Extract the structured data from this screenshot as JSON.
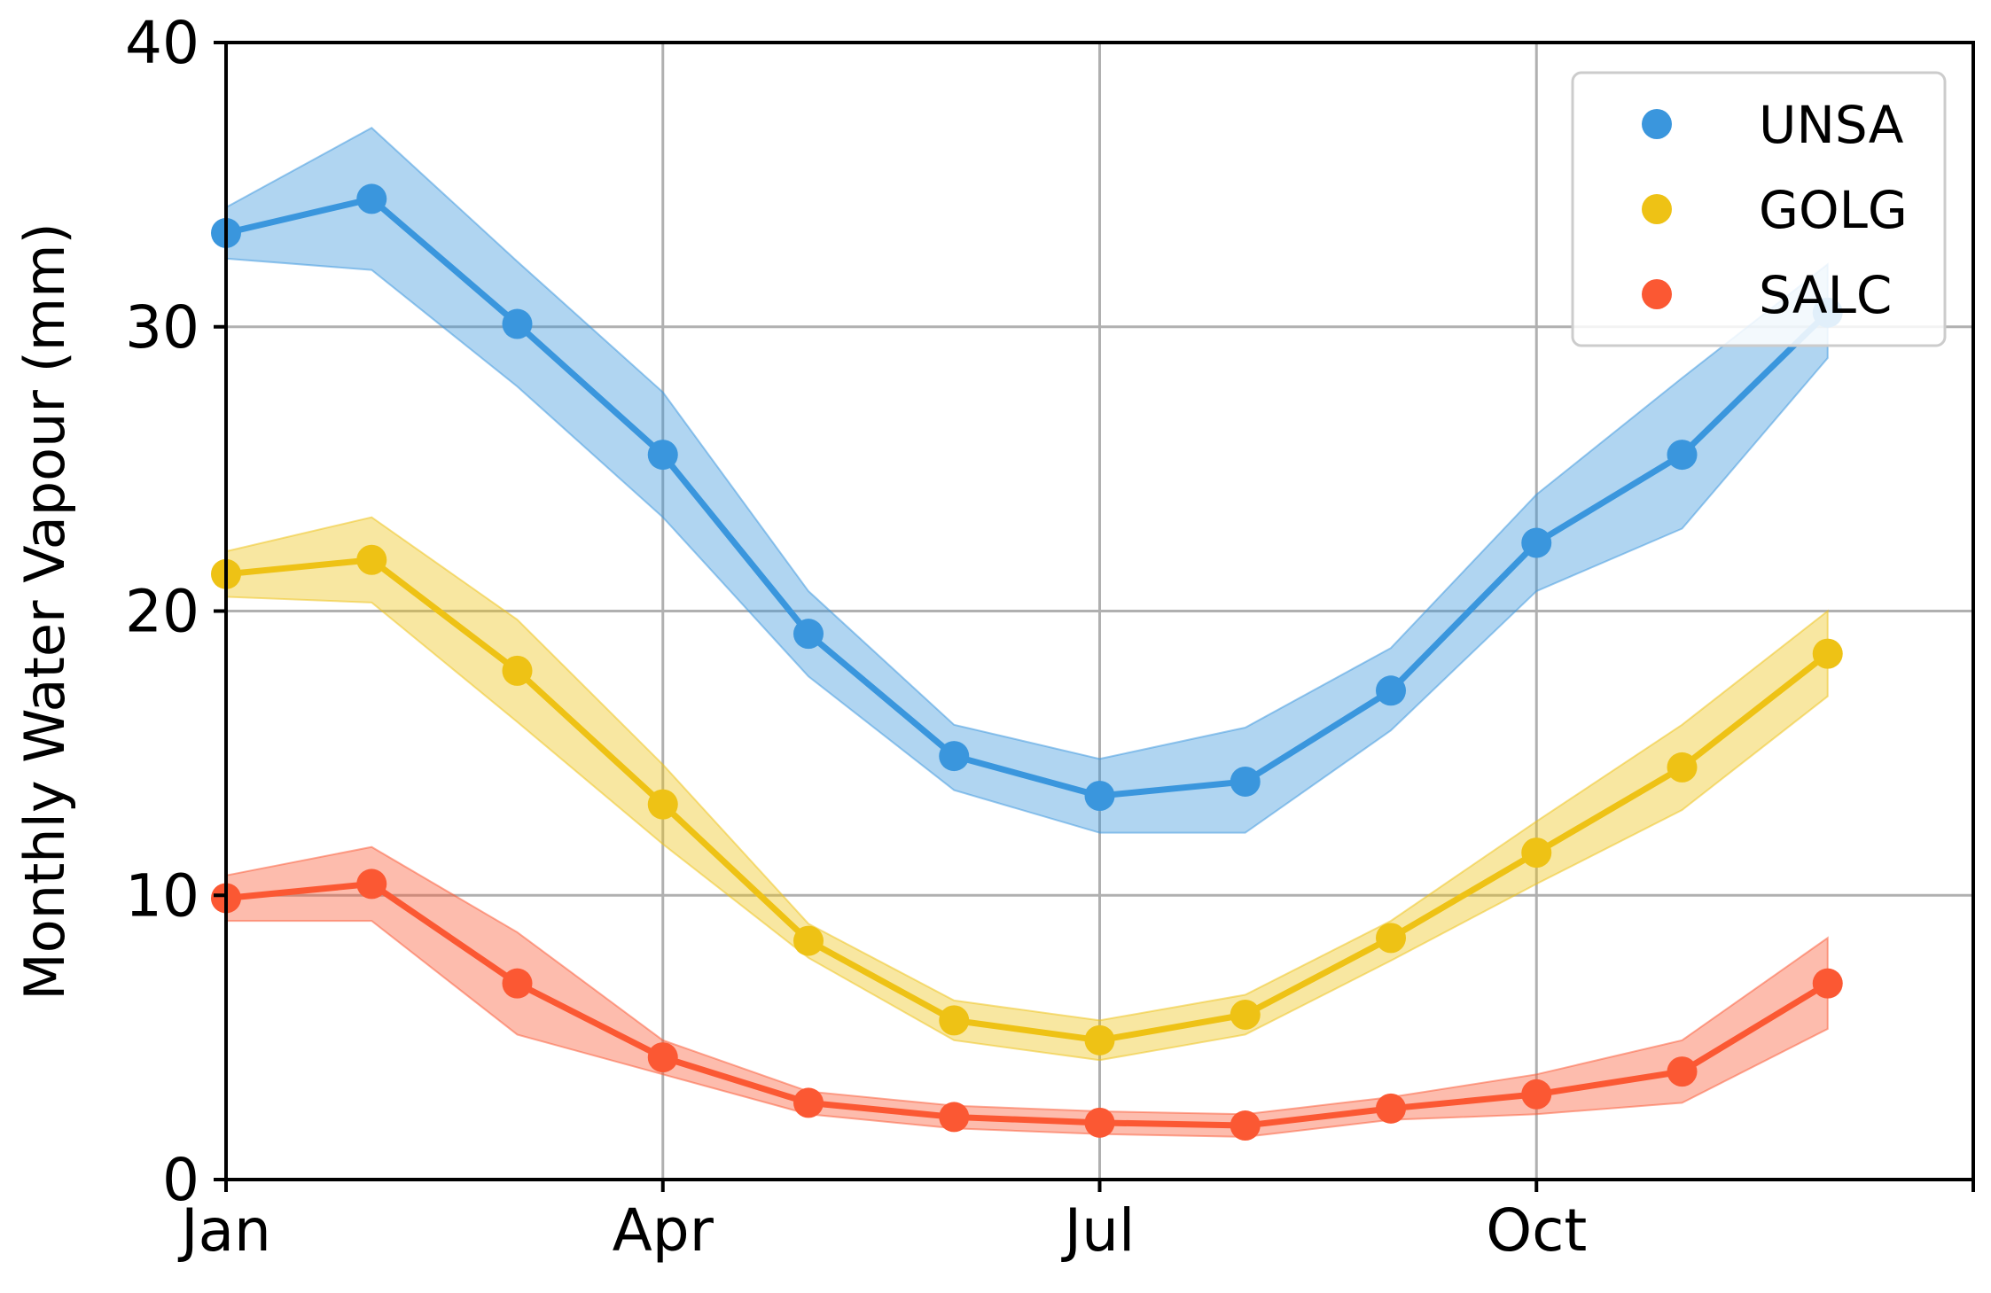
{
  "chart_data": {
    "type": "line",
    "title": "",
    "xlabel": "",
    "ylabel": "Monthly Water Vapour (mm)",
    "x": [
      1,
      2,
      3,
      4,
      5,
      6,
      7,
      8,
      9,
      10,
      11,
      12
    ],
    "xlim": [
      1,
      13
    ],
    "ylim": [
      0,
      40
    ],
    "x_ticks": [
      {
        "value": 1,
        "label": "Jan"
      },
      {
        "value": 4,
        "label": "Apr"
      },
      {
        "value": 7,
        "label": "Jul"
      },
      {
        "value": 10,
        "label": "Oct"
      },
      {
        "value": 13,
        "label": ""
      }
    ],
    "y_ticks": [
      {
        "value": 0,
        "label": "0"
      },
      {
        "value": 10,
        "label": "10"
      },
      {
        "value": 20,
        "label": "20"
      },
      {
        "value": 30,
        "label": "30"
      },
      {
        "value": 40,
        "label": "40"
      }
    ],
    "grid": true,
    "legend_position": "top-right",
    "series": [
      {
        "name": "UNSA",
        "color": "#3a96dd",
        "values": [
          33.3,
          34.5,
          30.1,
          25.5,
          19.2,
          14.9,
          13.5,
          14.0,
          17.2,
          22.4,
          25.5,
          30.5
        ],
        "upper": [
          34.2,
          37.0,
          32.3,
          27.7,
          20.7,
          16.0,
          14.8,
          15.9,
          18.7,
          24.1,
          28.2,
          32.2
        ],
        "lower": [
          32.4,
          32.0,
          27.9,
          23.3,
          17.7,
          13.7,
          12.2,
          12.2,
          15.8,
          20.7,
          22.9,
          28.9
        ]
      },
      {
        "name": "GOLG",
        "color": "#eec215",
        "values": [
          21.3,
          21.8,
          17.9,
          13.2,
          8.4,
          5.6,
          4.9,
          5.8,
          8.5,
          11.5,
          14.5,
          18.5
        ],
        "upper": [
          22.1,
          23.3,
          19.7,
          14.6,
          9.0,
          6.3,
          5.6,
          6.5,
          9.1,
          12.6,
          16.0,
          20.0
        ],
        "lower": [
          20.5,
          20.3,
          16.1,
          11.8,
          7.8,
          4.9,
          4.2,
          5.1,
          7.7,
          10.4,
          13.0,
          17.0
        ]
      },
      {
        "name": "SALC",
        "color": "#fb5833",
        "values": [
          9.9,
          10.4,
          6.9,
          4.3,
          2.7,
          2.2,
          2.0,
          1.9,
          2.5,
          3.0,
          3.8,
          6.9
        ],
        "upper": [
          10.7,
          11.7,
          8.7,
          4.9,
          3.1,
          2.6,
          2.4,
          2.3,
          2.9,
          3.7,
          4.9,
          8.5
        ],
        "lower": [
          9.1,
          9.1,
          5.1,
          3.7,
          2.3,
          1.8,
          1.6,
          1.5,
          2.1,
          2.3,
          2.7,
          5.3
        ]
      }
    ]
  }
}
